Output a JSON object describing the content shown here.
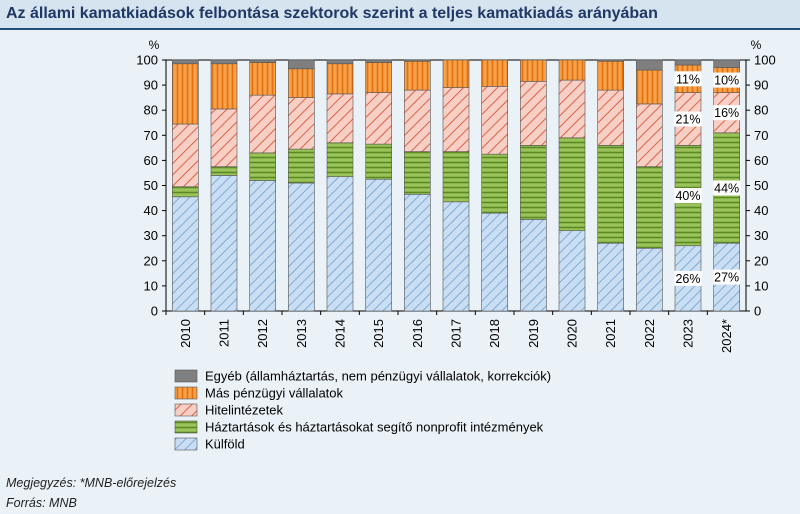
{
  "header": {
    "title": "Az állami kamatkiadások felbontása szektorok szerint a teljes kamatkiadás arányában"
  },
  "chart_data": {
    "type": "bar",
    "stacked": true,
    "y_unit_left": "%",
    "y_unit_right": "%",
    "ylim": [
      0,
      100
    ],
    "yticks": [
      0,
      10,
      20,
      30,
      40,
      50,
      60,
      70,
      80,
      90,
      100
    ],
    "categories": [
      "2010",
      "2011",
      "2012",
      "2013",
      "2014",
      "2015",
      "2016",
      "2017",
      "2018",
      "2019",
      "2020",
      "2021",
      "2022",
      "2023",
      "2024*"
    ],
    "series": [
      {
        "name": "Külföld",
        "color": "#bdd7ee",
        "pattern": "hatch-blue",
        "values": [
          45.5,
          54,
          52,
          51,
          53.5,
          52.5,
          46.5,
          43.5,
          39,
          36.5,
          32,
          27,
          25,
          26,
          27
        ]
      },
      {
        "name": "Háztartások és háztartásokat segítő nonprofit intézmények",
        "color": "#7fad3f",
        "pattern": "stripe-green",
        "values": [
          4,
          3.5,
          11,
          13.5,
          13.5,
          14,
          17,
          20,
          23.5,
          29.5,
          37,
          39,
          32.5,
          40,
          44
        ]
      },
      {
        "name": "Hitelintézetek",
        "color": "#f4b6a8",
        "pattern": "hatch-red",
        "values": [
          25,
          23,
          23,
          20.5,
          19.5,
          20.5,
          24.5,
          25.5,
          27,
          25.5,
          23,
          22,
          25,
          21,
          16
        ]
      },
      {
        "name": "Más pénzügyi vállalatok",
        "color": "#f79646",
        "pattern": "vstripe-orange",
        "values": [
          24,
          18,
          13,
          11.5,
          12,
          12,
          11.5,
          11,
          10.5,
          8.5,
          8,
          11.5,
          13.5,
          11,
          10
        ]
      },
      {
        "name": "Egyéb (államháztartás, nem pénzügyi vállalatok, korrekciók)",
        "color": "#7f7f7f",
        "pattern": "solid-gray",
        "values": [
          1.5,
          1.5,
          1,
          3.5,
          1.5,
          1,
          0.5,
          0,
          0,
          0,
          0,
          0.5,
          4,
          2,
          3
        ]
      }
    ],
    "annotations": [
      {
        "category": "2023",
        "series": "Külföld",
        "label": "26%"
      },
      {
        "category": "2023",
        "series": "Háztartások és háztartásokat segítő nonprofit intézmények",
        "label": "40%"
      },
      {
        "category": "2023",
        "series": "Hitelintézetek",
        "label": "21%"
      },
      {
        "category": "2023",
        "series": "Más pénzügyi vállalatok",
        "label": "11%"
      },
      {
        "category": "2024*",
        "series": "Külföld",
        "label": "27%"
      },
      {
        "category": "2024*",
        "series": "Háztartások és háztartásokat segítő nonprofit intézmények",
        "label": "44%"
      },
      {
        "category": "2024*",
        "series": "Hitelintézetek",
        "label": "16%"
      },
      {
        "category": "2024*",
        "series": "Más pénzügyi vállalatok",
        "label": "10%"
      }
    ],
    "legend_order": [
      "Egyéb (államháztartás, nem pénzügyi vállalatok, korrekciók)",
      "Más pénzügyi vállalatok",
      "Hitelintézetek",
      "Háztartások és háztartásokat segítő nonprofit intézmények",
      "Külföld"
    ],
    "legend_placement": "bottom-left",
    "grid": false
  },
  "notes": {
    "note": "Megjegyzés: *MNB-előrejelzés",
    "source": "Forrás: MNB"
  }
}
